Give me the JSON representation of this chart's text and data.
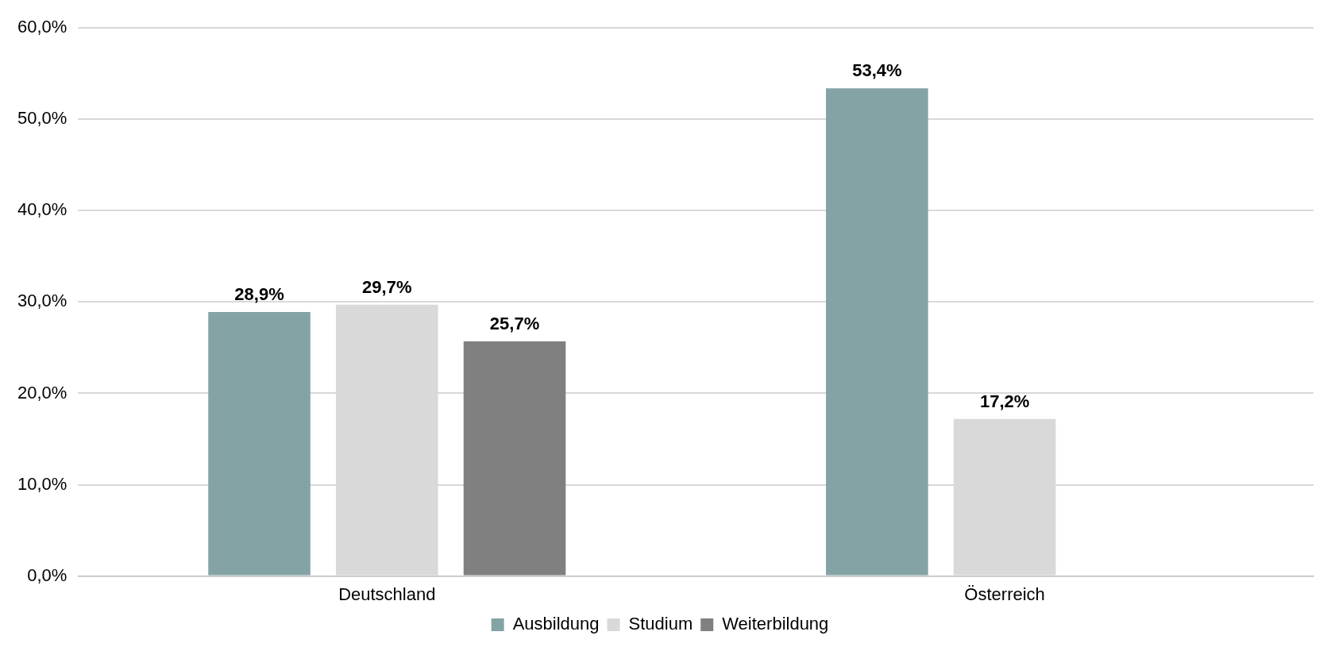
{
  "chart_data": {
    "type": "bar",
    "categories": [
      "Deutschland",
      "Österreich"
    ],
    "series": [
      {
        "name": "Ausbildung",
        "color": "#84a3a5",
        "values": [
          28.9,
          53.4
        ],
        "value_labels": [
          "28,9%",
          "53,4%"
        ]
      },
      {
        "name": "Studium",
        "color": "#d9d9d9",
        "values": [
          29.7,
          17.2
        ],
        "value_labels": [
          "29,7%",
          "17,2%"
        ]
      },
      {
        "name": "Weiterbildung",
        "color": "#808080",
        "values": [
          25.7,
          null
        ],
        "value_labels": [
          "25,7%",
          null
        ]
      }
    ],
    "ylim": [
      0,
      60
    ],
    "yticks": [
      {
        "value": 0,
        "label": "0,0%"
      },
      {
        "value": 10,
        "label": "10,0%"
      },
      {
        "value": 20,
        "label": "20,0%"
      },
      {
        "value": 30,
        "label": "30,0%"
      },
      {
        "value": 40,
        "label": "40,0%"
      },
      {
        "value": 50,
        "label": "50,0%"
      },
      {
        "value": 60,
        "label": "60,0%"
      }
    ],
    "grid": "y",
    "legend": "bottom"
  }
}
